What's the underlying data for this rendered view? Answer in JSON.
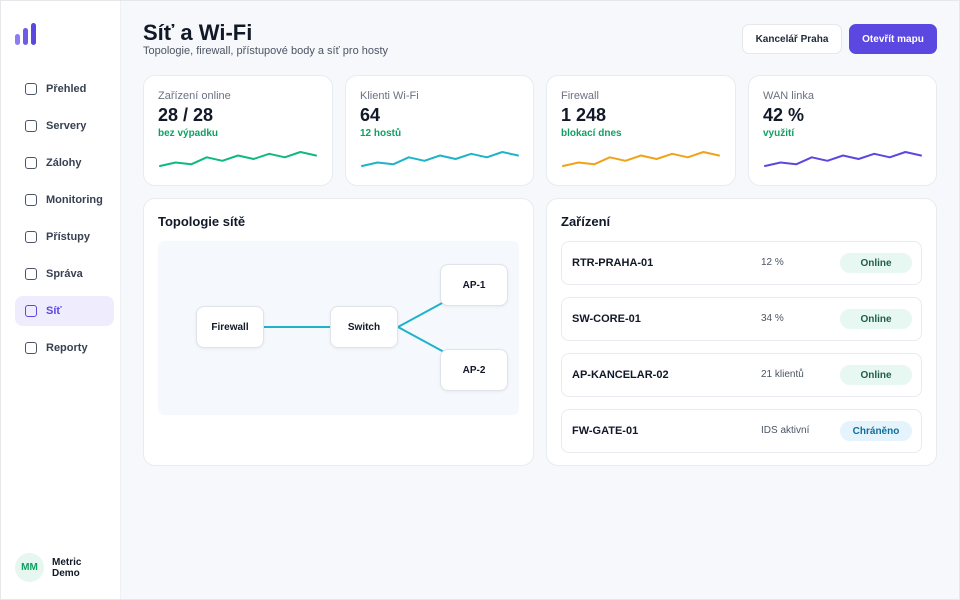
{
  "app": {
    "title": "Síť a Wi-Fi",
    "subtitle": "Topologie, firewall, přístupové body a síť pro hosty"
  },
  "sidebar": {
    "items": [
      {
        "label": "Přehled",
        "icon": "checkbox-icon",
        "active": false
      },
      {
        "label": "Servery",
        "icon": "checkbox-icon",
        "active": false
      },
      {
        "label": "Zálohy",
        "icon": "checkbox-icon",
        "active": false
      },
      {
        "label": "Monitoring",
        "icon": "checkbox-icon",
        "active": false
      },
      {
        "label": "Přístupy",
        "icon": "checkbox-icon",
        "active": false
      },
      {
        "label": "Správa",
        "icon": "checkbox-icon",
        "active": false
      },
      {
        "label": "Síť",
        "icon": "checkbox-icon",
        "active": true
      },
      {
        "label": "Reporty",
        "icon": "checkbox-icon",
        "active": false
      }
    ],
    "user": {
      "initials": "MM",
      "name": "Metric Demo"
    }
  },
  "header": {
    "location_label": "Kancelář Praha",
    "map_button_label": "Otevřít mapu"
  },
  "stats": [
    {
      "label": "Zařízení online",
      "value": "28 / 28",
      "note": "bez výpadku",
      "note_color": "#0f9f62",
      "line_color": "#10b981",
      "trend": [
        2,
        4,
        3,
        7,
        5,
        8,
        6,
        9,
        7,
        10,
        8
      ]
    },
    {
      "label": "Klienti Wi-Fi",
      "value": "64",
      "note": "12 hostů",
      "note_color": "#0f9f62",
      "line_color": "#1fb3c9",
      "trend": [
        2,
        4,
        3,
        7,
        5,
        8,
        6,
        9,
        7,
        10,
        8
      ]
    },
    {
      "label": "Firewall",
      "value": "1 248",
      "note": "blokací dnes",
      "note_color": "#0f9f62",
      "line_color": "#f0a319",
      "trend": [
        2,
        4,
        3,
        7,
        5,
        8,
        6,
        9,
        7,
        10,
        8
      ]
    },
    {
      "label": "WAN linka",
      "value": "42 %",
      "note": "využití",
      "note_color": "#0f9f62",
      "line_color": "#5b48e0",
      "trend": [
        2,
        4,
        3,
        7,
        5,
        8,
        6,
        9,
        7,
        10,
        8
      ]
    }
  ],
  "topology": {
    "title": "Topologie sítě",
    "nodes": {
      "firewall": "Firewall",
      "switch": "Switch",
      "ap1": "AP-1",
      "ap2": "AP-2"
    },
    "link_color": "#1fb3c9"
  },
  "devices": {
    "title": "Zařízení",
    "rows": [
      {
        "name": "RTR-PRAHA-01",
        "metric": "12 %",
        "status": "Online",
        "status_type": "online"
      },
      {
        "name": "SW-CORE-01",
        "metric": "34 %",
        "status": "Online",
        "status_type": "online"
      },
      {
        "name": "AP-KANCELAR-02",
        "metric": "21 klientů",
        "status": "Online",
        "status_type": "online"
      },
      {
        "name": "FW-GATE-01",
        "metric": "IDS aktivní",
        "status": "Chráněno",
        "status_type": "protected"
      }
    ]
  }
}
